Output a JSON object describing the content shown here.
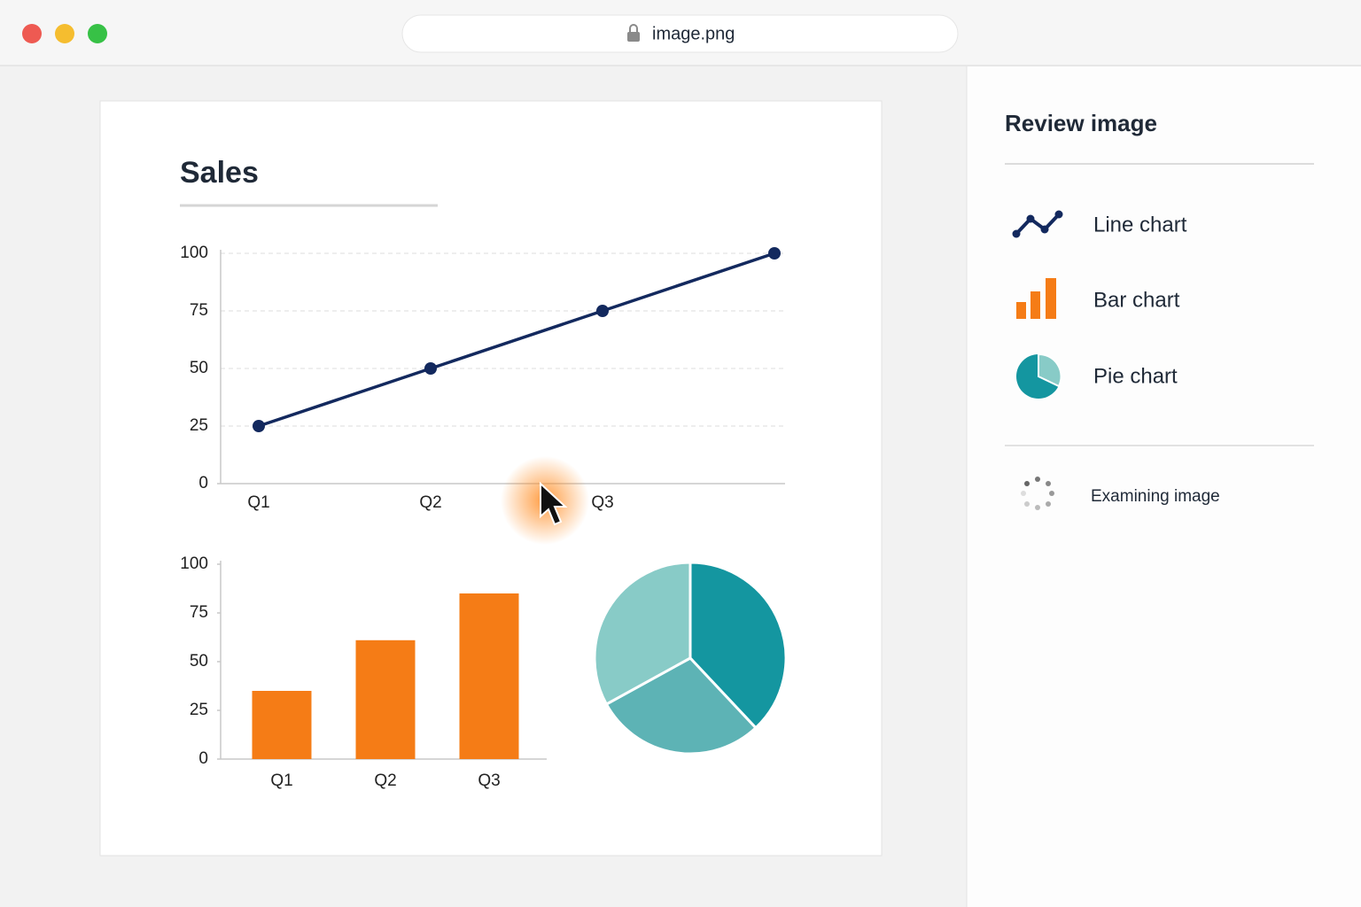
{
  "browser": {
    "address": "image.png"
  },
  "chart_data": [
    {
      "type": "line",
      "title": "Sales",
      "categories": [
        "Q1",
        "Q2",
        "Q3",
        null
      ],
      "values": [
        25,
        50,
        75,
        100
      ],
      "color": "#13295e",
      "ylim": [
        0,
        100
      ],
      "yticks": [
        0,
        25,
        50,
        75,
        100
      ],
      "grid": true
    },
    {
      "type": "bar",
      "categories": [
        "Q1",
        "Q2",
        "Q3"
      ],
      "values": [
        35,
        61,
        85
      ],
      "color": "#f57c16",
      "ylim": [
        0,
        100
      ],
      "yticks": [
        0,
        25,
        50,
        75,
        100
      ],
      "grid": false
    },
    {
      "type": "pie",
      "values": [
        38,
        29,
        33
      ],
      "colors": [
        "#1496a0",
        "#5db3b5",
        "#88cbc7"
      ]
    }
  ],
  "sidebar": {
    "title": "Review image",
    "items": [
      "Line chart",
      "Bar chart",
      "Pie chart"
    ],
    "status": "Examining image"
  }
}
